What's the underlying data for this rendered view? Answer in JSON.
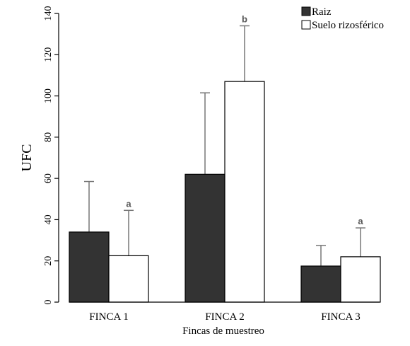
{
  "chart_data": {
    "type": "bar",
    "xlabel": "Fincas de muestreo",
    "ylabel": "UFC",
    "ylim": [
      0,
      140
    ],
    "yticks": [
      "0",
      "20",
      "40",
      "60",
      "80",
      "100",
      "120",
      "140"
    ],
    "categories": [
      "FINCA 1",
      "FINCA 2",
      "FINCA 3"
    ],
    "series": [
      {
        "name": "Raiz",
        "color": "#333333",
        "values": [
          34,
          62,
          17.5
        ],
        "error": [
          24.5,
          39.5,
          10
        ],
        "significance": [
          "",
          "",
          ""
        ]
      },
      {
        "name": "Suelo rizosférico",
        "color": "#ffffff",
        "values": [
          22.5,
          107,
          22
        ],
        "error": [
          22,
          27,
          14
        ],
        "significance": [
          "a",
          "b",
          "a"
        ]
      }
    ],
    "legend": "top-right",
    "grid": false
  }
}
